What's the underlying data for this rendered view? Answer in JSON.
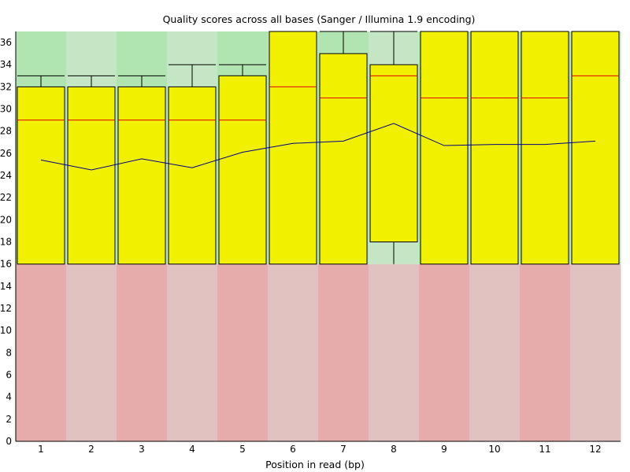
{
  "chart_data": {
    "type": "box",
    "title": "Quality scores across all bases (Sanger / Illumina 1.9 encoding)",
    "xlabel": "Position in read (bp)",
    "ylabel": "",
    "ylim": [
      0,
      37
    ],
    "yticks": [
      0,
      2,
      4,
      6,
      8,
      10,
      12,
      14,
      16,
      18,
      20,
      22,
      24,
      26,
      28,
      30,
      32,
      34,
      36
    ],
    "categories": [
      "1",
      "2",
      "3",
      "4",
      "5",
      "6",
      "7",
      "8",
      "9",
      "10",
      "11",
      "12"
    ],
    "boxes": [
      {
        "lower_whisker": 16,
        "q1": 16,
        "median": 29,
        "q3": 32,
        "upper_whisker": 33,
        "mean": 25.4
      },
      {
        "lower_whisker": 16,
        "q1": 16,
        "median": 29,
        "q3": 32,
        "upper_whisker": 33,
        "mean": 24.5
      },
      {
        "lower_whisker": 16,
        "q1": 16,
        "median": 29,
        "q3": 32,
        "upper_whisker": 33,
        "mean": 25.5
      },
      {
        "lower_whisker": 16,
        "q1": 16,
        "median": 29,
        "q3": 32,
        "upper_whisker": 34,
        "mean": 24.7
      },
      {
        "lower_whisker": 16,
        "q1": 16,
        "median": 29,
        "q3": 33,
        "upper_whisker": 34,
        "mean": 26.1
      },
      {
        "lower_whisker": 16,
        "q1": 16,
        "median": 32,
        "q3": 37,
        "upper_whisker": 37,
        "mean": 26.9
      },
      {
        "lower_whisker": 16,
        "q1": 16,
        "median": 31,
        "q3": 35,
        "upper_whisker": 37,
        "mean": 27.1
      },
      {
        "lower_whisker": 16,
        "q1": 18,
        "median": 33,
        "q3": 34,
        "upper_whisker": 37,
        "mean": 28.7
      },
      {
        "lower_whisker": 16,
        "q1": 16,
        "median": 31,
        "q3": 37,
        "upper_whisker": 37,
        "mean": 26.7
      },
      {
        "lower_whisker": 16,
        "q1": 16,
        "median": 31,
        "q3": 37,
        "upper_whisker": 37,
        "mean": 26.8
      },
      {
        "lower_whisker": 16,
        "q1": 16,
        "median": 31,
        "q3": 37,
        "upper_whisker": 37,
        "mean": 26.8
      },
      {
        "lower_whisker": 16,
        "q1": 16,
        "median": 33,
        "q3": 37,
        "upper_whisker": 37,
        "mean": 27.1
      }
    ],
    "bands": [
      {
        "from": 0,
        "to": 16,
        "colors": [
          "#e6abab",
          "#e2c1c1"
        ]
      },
      {
        "from": 16,
        "to": 37,
        "colors": [
          "#b0e4b0",
          "#c5e6c5"
        ]
      }
    ],
    "colors": {
      "box_fill": "#f0f000",
      "box_stroke": "#000000",
      "median": "#e10000",
      "mean_line": "#00008b"
    },
    "grid": false,
    "legend": "none"
  }
}
